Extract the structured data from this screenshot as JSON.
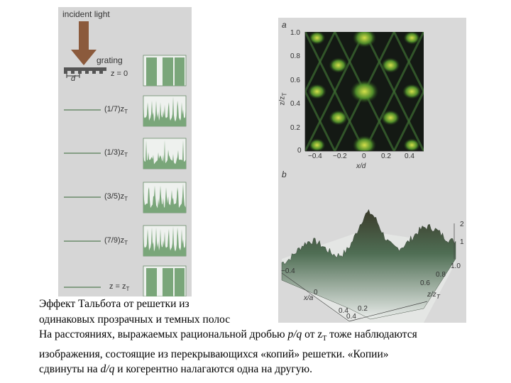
{
  "figure": {
    "left_panel": {
      "incident_label": "incident light",
      "grating_label": "grating",
      "period_label": "d",
      "rows": [
        {
          "label": "z = 0",
          "pattern": "binary"
        },
        {
          "label": "(1/7)z",
          "sub": "T",
          "pattern": "peaks7"
        },
        {
          "label": "(1/3)z",
          "sub": "T",
          "pattern": "peaks3"
        },
        {
          "label": "(3/5)z",
          "sub": "T",
          "pattern": "peaks5"
        },
        {
          "label": "(7/9)z",
          "sub": "T",
          "pattern": "peaks9"
        },
        {
          "label": "z = z",
          "sub": "T",
          "pattern": "binary"
        }
      ]
    },
    "panel_a": {
      "label": "a",
      "ylabel": "z/z",
      "ylabel_sub": "T",
      "xlabel": "x/d",
      "yticks": [
        "1.0",
        "0.8",
        "0.6",
        "0.4",
        "0.2",
        "0"
      ],
      "xticks": [
        "−0.4",
        "−0.2",
        "0",
        "0.2",
        "0.4"
      ]
    },
    "panel_b": {
      "label": "b",
      "xlabel": "x/a",
      "zlabel": "z/z",
      "zlabel_sub": "T",
      "xticks": [
        "−0.4",
        "0",
        "0.4"
      ],
      "zticks": [
        "0.2",
        "0.4",
        "0.6",
        "0.8",
        "1.0"
      ],
      "vticks": [
        "1",
        "2"
      ]
    }
  },
  "caption": {
    "line1": "Эффект Тальбота от решетки из",
    "line2": "одинаковых прозрачных и темных полос",
    "line3_a": "На расстояниях, выражаемых рациональной дробью ",
    "line3_frac": "p/q",
    "line3_b": " от  z",
    "line3_sub": "T",
    "line3_c": " тоже наблюдаются",
    "line4": "изображения, состоящие из перекрывающихся «копий» решетки. «Копии»",
    "line5_a": "сдвинуты на ",
    "line5_frac": "d/q",
    "line5_b": " и когерентно налагаются одна на другую."
  }
}
